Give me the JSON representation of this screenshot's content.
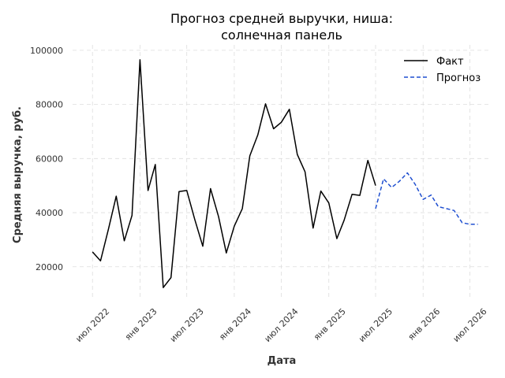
{
  "chart_data": {
    "type": "line",
    "title_line1": "Прогноз средней выручки, ниша:",
    "title_line2": "солнечная панель",
    "xlabel": "Дата",
    "ylabel": "Средняя выручка, руб.",
    "ylim": [
      8000,
      102000
    ],
    "xlim": [
      "2022-04-15",
      "2026-09-20"
    ],
    "yticks": [
      20000,
      40000,
      60000,
      80000,
      100000
    ],
    "ytick_labels": [
      "20000",
      "40000",
      "60000",
      "80000",
      "100000"
    ],
    "xticks": [
      "2022-07-01",
      "2023-01-01",
      "2023-07-01",
      "2024-01-01",
      "2024-07-01",
      "2025-01-01",
      "2025-07-01",
      "2026-01-01",
      "2026-07-01"
    ],
    "xtick_labels": [
      "июл 2022",
      "янв 2023",
      "июл 2023",
      "янв 2024",
      "июл 2024",
      "янв 2025",
      "июл 2025",
      "янв 2026",
      "июл 2026"
    ],
    "grid": true,
    "legend_position": "top-right",
    "series": [
      {
        "name": "Факт",
        "color": "#000000",
        "style": "solid",
        "x": [
          "2022-07-01",
          "2022-08-01",
          "2022-09-01",
          "2022-10-01",
          "2022-11-01",
          "2022-12-01",
          "2023-01-01",
          "2023-02-01",
          "2023-03-01",
          "2023-04-01",
          "2023-05-01",
          "2023-06-01",
          "2023-07-01",
          "2023-08-01",
          "2023-09-01",
          "2023-10-01",
          "2023-11-01",
          "2023-12-01",
          "2024-01-01",
          "2024-02-01",
          "2024-03-01",
          "2024-04-01",
          "2024-05-01",
          "2024-06-01",
          "2024-07-01",
          "2024-08-01",
          "2024-09-01",
          "2024-10-01",
          "2024-11-01",
          "2024-12-01",
          "2025-01-01",
          "2025-02-01",
          "2025-03-01",
          "2025-04-01",
          "2025-05-01",
          "2025-06-01",
          "2025-07-01"
        ],
        "values": [
          25500,
          22200,
          34000,
          46100,
          29600,
          39000,
          96500,
          48200,
          57800,
          12300,
          16000,
          47800,
          48200,
          37500,
          27600,
          48900,
          38500,
          25100,
          35000,
          41500,
          61000,
          68700,
          80200,
          71000,
          73400,
          78200,
          61500,
          55100,
          34300,
          48000,
          43600,
          30400,
          37200,
          46800,
          46400,
          59300,
          50000
        ]
      },
      {
        "name": "Прогноз",
        "color": "#1f4fd0",
        "style": "dashed",
        "x": [
          "2025-07-01",
          "2025-08-01",
          "2025-09-01",
          "2025-10-01",
          "2025-11-01",
          "2025-12-01",
          "2026-01-01",
          "2026-02-01",
          "2026-03-01",
          "2026-04-01",
          "2026-05-01",
          "2026-06-01",
          "2026-07-01",
          "2026-08-01"
        ],
        "values": [
          41500,
          52500,
          49300,
          51600,
          54700,
          50500,
          44900,
          46500,
          42200,
          41500,
          40800,
          36300,
          35700,
          35700
        ]
      }
    ]
  }
}
